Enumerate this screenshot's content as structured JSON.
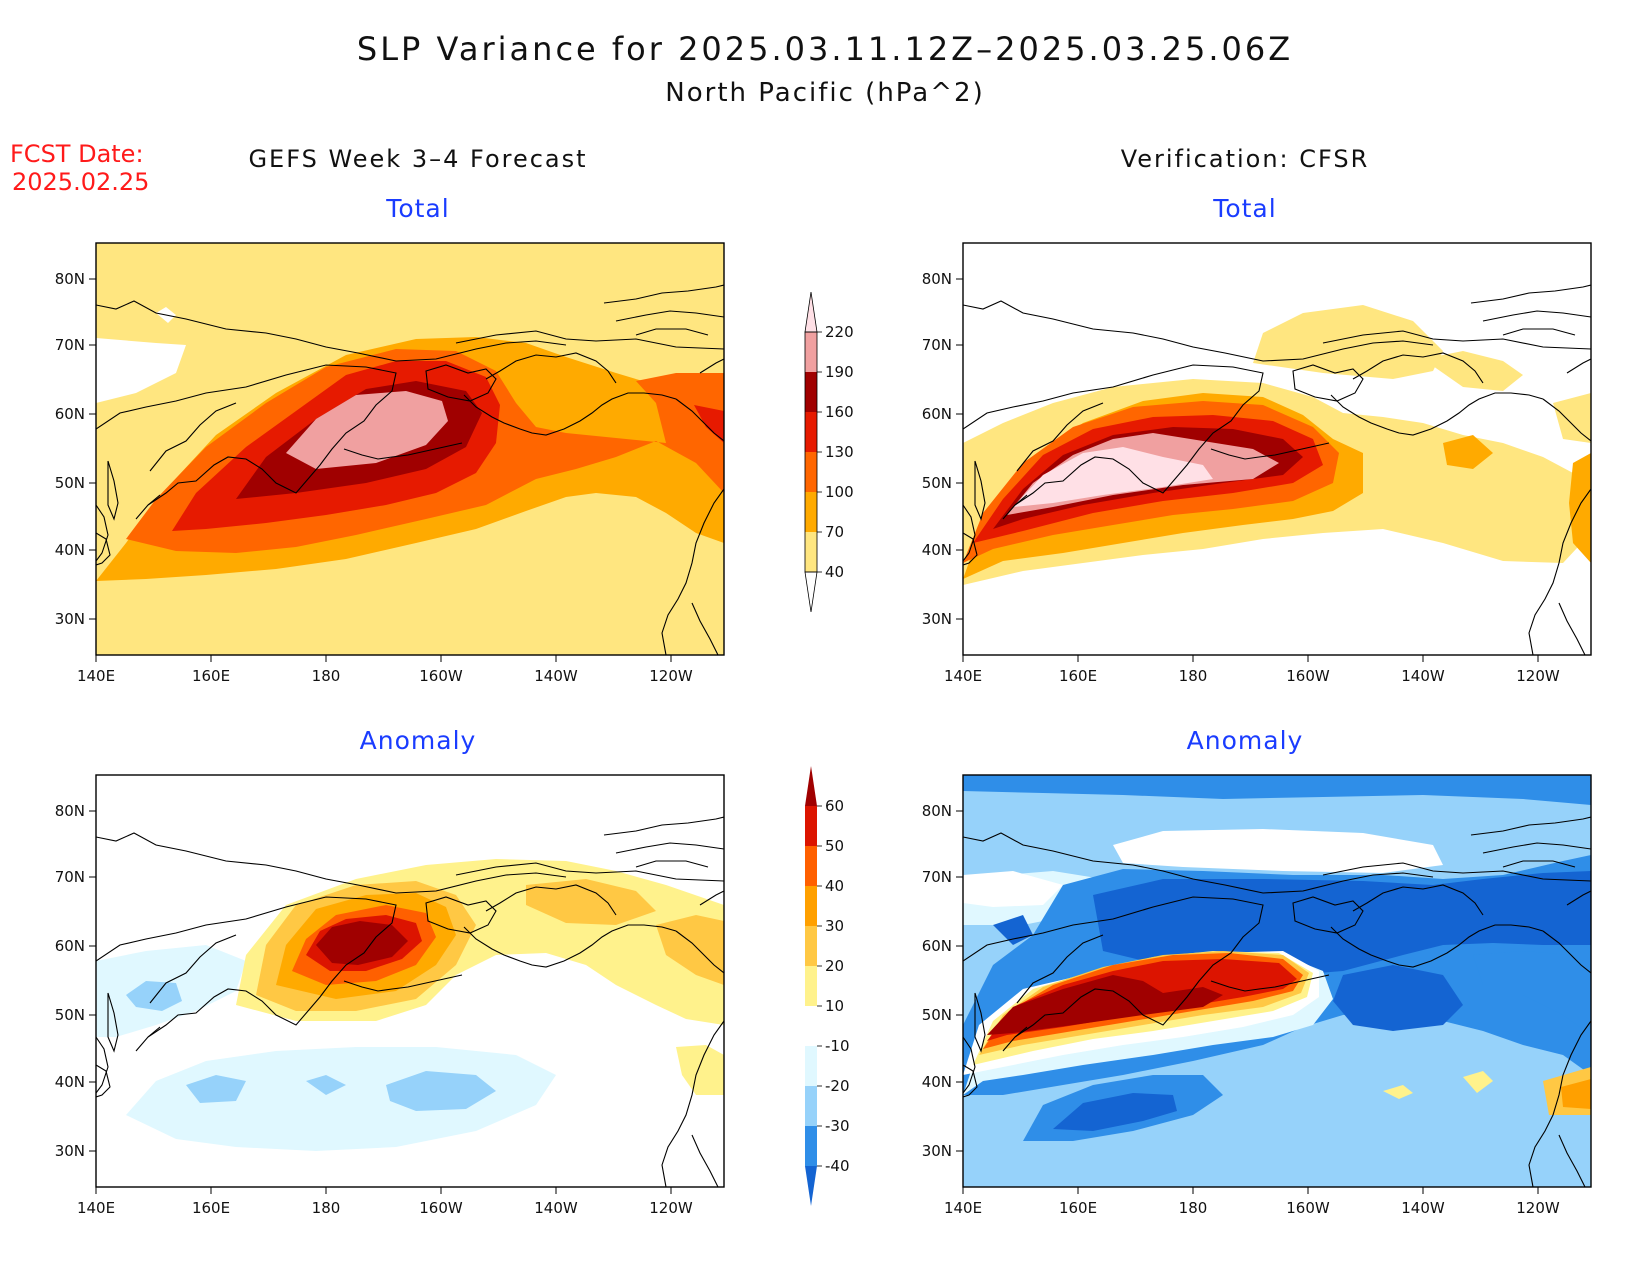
{
  "title": "SLP Variance for 2025.03.11.12Z–2025.03.25.06Z",
  "subtitle": "North Pacific (hPa^2)",
  "fcst_label": "FCST Date:",
  "fcst_date": "2025.02.25",
  "columns": {
    "left": "GEFS Week 3–4 Forecast",
    "right": "Verification: CFSR"
  },
  "panel_titles": {
    "total": "Total",
    "anomaly": "Anomaly"
  },
  "axes": {
    "lon_ticks": [
      "140E",
      "160E",
      "180",
      "160W",
      "140W",
      "120W"
    ],
    "lat_ticks": [
      "30N",
      "40N",
      "50N",
      "60N",
      "70N",
      "80N"
    ]
  },
  "colorbars": {
    "total": {
      "levels": [
        "40",
        "70",
        "100",
        "130",
        "160",
        "190",
        "220"
      ],
      "colors": [
        "#ffe680",
        "#ffaa00",
        "#ff6600",
        "#e61a00",
        "#a00000",
        "#f0a0a0",
        "#ffe0e6"
      ]
    },
    "anomaly": {
      "levels": [
        "-40",
        "-30",
        "-20",
        "-10",
        "10",
        "20",
        "30",
        "40",
        "50",
        "60"
      ],
      "colors": [
        "#1464d2",
        "#2f8ee8",
        "#96d2fa",
        "#e0f8ff",
        "#ffffff",
        "#fff28c",
        "#ffc844",
        "#ffa000",
        "#ff6000",
        "#dc1400",
        "#a00000"
      ]
    }
  }
}
